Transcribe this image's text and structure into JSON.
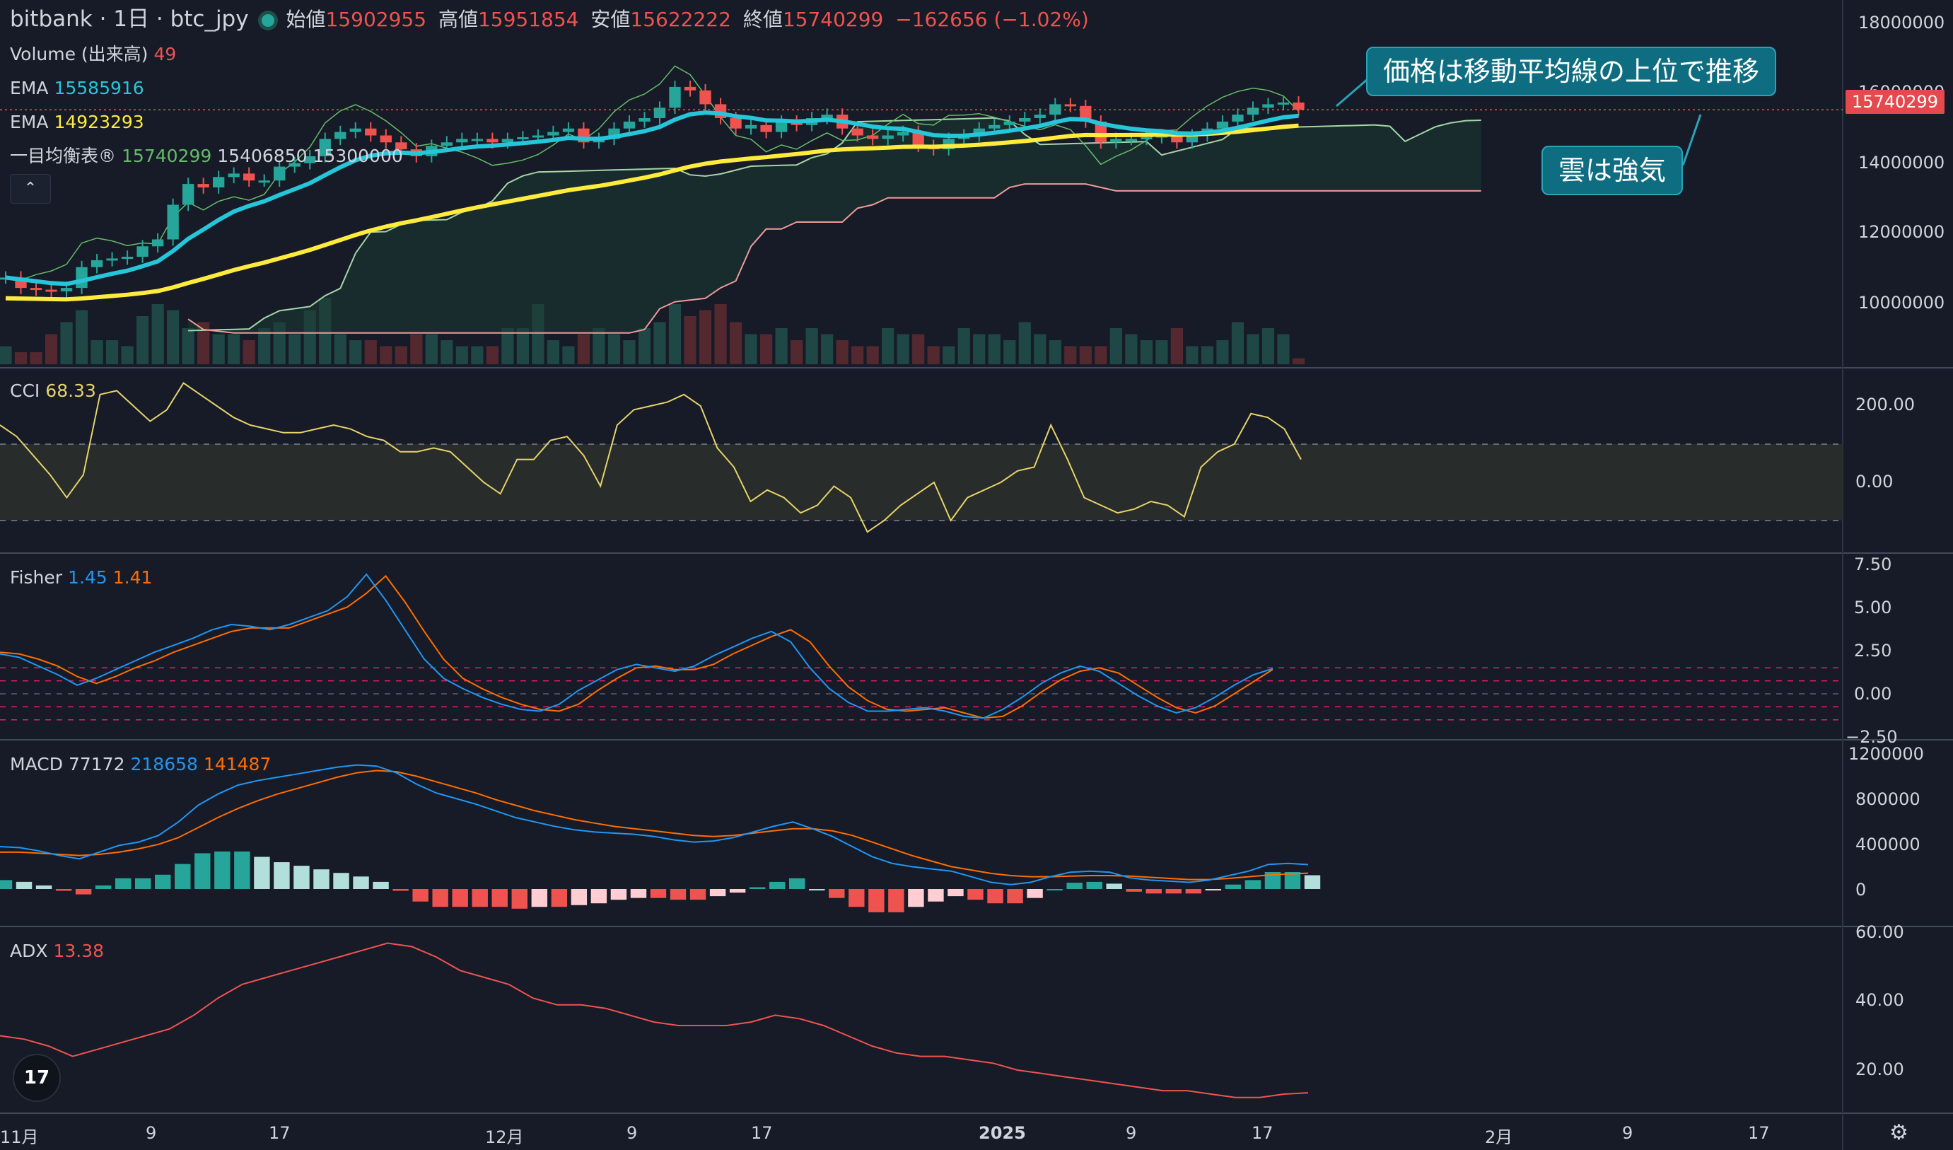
{
  "header": {
    "symbol": "bitbank · 1日 · btc_jpy",
    "open_label": "始値",
    "open": "15902955",
    "high_label": "高値",
    "high": "15951854",
    "low_label": "安値",
    "low": "15622222",
    "close_label": "終値",
    "close": "15740299",
    "change": "−162656 (−1.02%)"
  },
  "legends": {
    "volume_label": "Volume (出来高)",
    "volume_value": "49",
    "ema1_label": "EMA",
    "ema1_value": "15585916",
    "ema2_label": "EMA",
    "ema2_value": "14923293",
    "ichimoku_label": "一目均衡表®",
    "ichimoku_v1": "15740299",
    "ichimoku_v2": "15406850",
    "ichimoku_v3": "15300000",
    "cci_label": "CCI",
    "cci_value": "68.33",
    "fisher_label": "Fisher",
    "fisher_v1": "1.45",
    "fisher_v2": "1.41",
    "macd_label": "MACD",
    "macd_v1": "77172",
    "macd_v2": "218658",
    "macd_v3": "141487",
    "adx_label": "ADX",
    "adx_value": "13.38"
  },
  "price_axis": [
    "18000000",
    "16000000",
    "14000000",
    "12000000",
    "10000000"
  ],
  "price_tag": "15740299",
  "cci_axis": [
    "200.00",
    "0.00"
  ],
  "fisher_axis": [
    "7.50",
    "5.00",
    "2.50",
    "0.00",
    "−2.50"
  ],
  "macd_axis": [
    "1200000",
    "800000",
    "400000",
    "0"
  ],
  "adx_axis": [
    "60.00",
    "40.00",
    "20.00"
  ],
  "time_axis": [
    "11月",
    "9",
    "17",
    "12月",
    "9",
    "17",
    "2025",
    "9",
    "17",
    "2月",
    "9",
    "17"
  ],
  "callouts": {
    "primary": "価格は移動平均線の上位で推移",
    "secondary": "雲は強気"
  },
  "collapse_icon": "chevron-up-icon",
  "logo_text": "17",
  "colors": {
    "up": "#26a69a",
    "down": "#ef5350",
    "ema_fast": "#26c6da",
    "ema_slow": "#ffeb3b",
    "cci": "#e6d36a",
    "fisher": "#2196f3",
    "trigger": "#ff6d00",
    "adx": "#ef5350"
  },
  "chart_data": {
    "type": "line",
    "title": "",
    "days_start": "2024-11-01",
    "closes": [
      10900000,
      10600000,
      10550000,
      10500000,
      10600000,
      11200000,
      11400000,
      11450000,
      11500000,
      11800000,
      12000000,
      13000000,
      13600000,
      13500000,
      13800000,
      13900000,
      13700000,
      13700000,
      14100000,
      14200000,
      14400000,
      14900000,
      15100000,
      15200000,
      15000000,
      14800000,
      14600000,
      14400000,
      14700000,
      14800000,
      14900000,
      14900000,
      14800000,
      14900000,
      14950000,
      15000000,
      15100000,
      15200000,
      14800000,
      14900000,
      15200000,
      15400000,
      15500000,
      15800000,
      16400000,
      16300000,
      15900000,
      15500000,
      15200000,
      15300000,
      15100000,
      15400000,
      15300000,
      15500000,
      15600000,
      15200000,
      15000000,
      14900000,
      15000000,
      15100000,
      14700000,
      14600000,
      14900000,
      15000000,
      15200000,
      15300000,
      15400000,
      15500000,
      15600000,
      15900000,
      15850000,
      15400000,
      14800000,
      14900000,
      14900000,
      14950000,
      15000000,
      14800000,
      15000000,
      15200000,
      15400000,
      15600000,
      15800000,
      15900000,
      15950000,
      15740000
    ],
    "ema_fast_last": 15585916,
    "ema_slow_last": 14923293,
    "cci": [
      150,
      120,
      70,
      20,
      -40,
      20,
      230,
      240,
      200,
      160,
      190,
      260,
      230,
      200,
      170,
      150,
      140,
      130,
      130,
      140,
      150,
      140,
      120,
      110,
      80,
      80,
      90,
      80,
      40,
      0,
      -30,
      60,
      60,
      110,
      120,
      70,
      -10,
      150,
      190,
      200,
      210,
      230,
      200,
      90,
      40,
      -50,
      -20,
      -40,
      -80,
      -60,
      -10,
      -40,
      -130,
      -100,
      -60,
      -30,
      0,
      -100,
      -40,
      -20,
      0,
      30,
      40,
      150,
      60,
      -40,
      -60,
      -80,
      -70,
      -50,
      -60,
      -90,
      40,
      80,
      100,
      180,
      170,
      140,
      60
    ],
    "fisher": [
      2.3,
      2.1,
      1.6,
      1.1,
      0.5,
      0.9,
      1.4,
      1.9,
      2.4,
      2.8,
      3.2,
      3.7,
      4.0,
      3.9,
      3.7,
      4.0,
      4.4,
      4.8,
      5.6,
      6.9,
      5.4,
      3.7,
      2.0,
      0.9,
      0.3,
      -0.2,
      -0.6,
      -0.9,
      -1.0,
      -0.6,
      0.2,
      0.8,
      1.4,
      1.7,
      1.5,
      1.3,
      1.6,
      2.2,
      2.7,
      3.2,
      3.6,
      3.0,
      1.5,
      0.3,
      -0.5,
      -1.0,
      -1.0,
      -0.9,
      -0.8,
      -1.0,
      -1.3,
      -1.4,
      -0.9,
      -0.2,
      0.6,
      1.2,
      1.6,
      1.3,
      0.6,
      -0.1,
      -0.7,
      -1.1,
      -0.8,
      -0.2,
      0.5,
      1.1,
      1.45
    ],
    "fisher_trigger": [
      2.4,
      2.3,
      2.0,
      1.6,
      1.0,
      0.6,
      1.0,
      1.5,
      1.9,
      2.4,
      2.8,
      3.2,
      3.6,
      3.8,
      3.8,
      3.8,
      4.2,
      4.6,
      5.0,
      5.8,
      6.8,
      5.3,
      3.6,
      2.0,
      0.9,
      0.3,
      -0.2,
      -0.6,
      -0.9,
      -1.0,
      -0.6,
      0.2,
      0.9,
      1.5,
      1.6,
      1.4,
      1.4,
      1.7,
      2.3,
      2.8,
      3.3,
      3.7,
      3.0,
      1.6,
      0.4,
      -0.4,
      -0.9,
      -1.0,
      -0.9,
      -0.8,
      -1.1,
      -1.4,
      -1.3,
      -0.7,
      0.1,
      0.8,
      1.3,
      1.5,
      1.2,
      0.5,
      -0.2,
      -0.8,
      -1.1,
      -0.7,
      0.0,
      0.7,
      1.41
    ],
    "macd": [
      380000,
      370000,
      340000,
      300000,
      270000,
      330000,
      390000,
      420000,
      480000,
      600000,
      750000,
      850000,
      930000,
      970000,
      1000000,
      1030000,
      1060000,
      1090000,
      1110000,
      1100000,
      1040000,
      940000,
      860000,
      810000,
      760000,
      700000,
      640000,
      600000,
      560000,
      530000,
      510000,
      500000,
      490000,
      470000,
      440000,
      420000,
      430000,
      460000,
      510000,
      560000,
      600000,
      540000,
      470000,
      380000,
      290000,
      230000,
      200000,
      180000,
      160000,
      110000,
      60000,
      40000,
      60000,
      110000,
      150000,
      160000,
      150000,
      100000,
      80000,
      70000,
      60000,
      80000,
      120000,
      160000,
      220000,
      230000,
      218658
    ],
    "macd_signal": [
      330000,
      330000,
      320000,
      310000,
      300000,
      310000,
      330000,
      360000,
      400000,
      460000,
      550000,
      640000,
      720000,
      790000,
      850000,
      900000,
      950000,
      1000000,
      1040000,
      1060000,
      1050000,
      1010000,
      960000,
      910000,
      860000,
      800000,
      750000,
      700000,
      660000,
      620000,
      590000,
      560000,
      540000,
      520000,
      500000,
      480000,
      470000,
      480000,
      500000,
      520000,
      540000,
      540000,
      520000,
      480000,
      420000,
      360000,
      300000,
      250000,
      200000,
      170000,
      140000,
      120000,
      110000,
      110000,
      115000,
      120000,
      120000,
      115000,
      105000,
      95000,
      85000,
      85000,
      95000,
      110000,
      125000,
      135000,
      141487
    ],
    "adx": [
      30,
      29,
      27,
      24,
      26,
      28,
      30,
      32,
      36,
      41,
      45,
      47,
      49,
      51,
      53,
      55,
      57,
      56,
      53,
      49,
      47,
      45,
      41,
      39,
      39,
      38,
      36,
      34,
      33,
      33,
      33,
      34,
      36,
      35,
      33,
      30,
      27,
      25,
      24,
      24,
      23,
      22,
      20,
      19,
      18,
      17,
      16,
      15,
      14,
      14,
      13,
      12,
      12,
      13,
      13.38
    ],
    "volume": [
      0.3,
      0.2,
      0.2,
      0.5,
      0.7,
      0.9,
      0.4,
      0.4,
      0.3,
      0.8,
      1.0,
      0.9,
      0.6,
      0.7,
      0.5,
      0.5,
      0.4,
      0.6,
      0.7,
      0.5,
      0.9,
      1.1,
      0.5,
      0.4,
      0.4,
      0.3,
      0.3,
      0.5,
      0.5,
      0.4,
      0.3,
      0.3,
      0.3,
      0.6,
      0.6,
      1.0,
      0.4,
      0.3,
      0.5,
      0.6,
      0.5,
      0.4,
      0.6,
      0.7,
      1.0,
      0.8,
      0.9,
      1.0,
      0.7,
      0.5,
      0.5,
      0.6,
      0.4,
      0.6,
      0.5,
      0.4,
      0.3,
      0.3,
      0.6,
      0.5,
      0.5,
      0.3,
      0.3,
      0.6,
      0.5,
      0.5,
      0.4,
      0.7,
      0.5,
      0.4,
      0.3,
      0.3,
      0.3,
      0.6,
      0.5,
      0.4,
      0.4,
      0.6,
      0.3,
      0.3,
      0.4,
      0.7,
      0.5,
      0.6,
      0.5,
      0.1
    ],
    "price_ylim": [
      8500000,
      18500000
    ]
  }
}
